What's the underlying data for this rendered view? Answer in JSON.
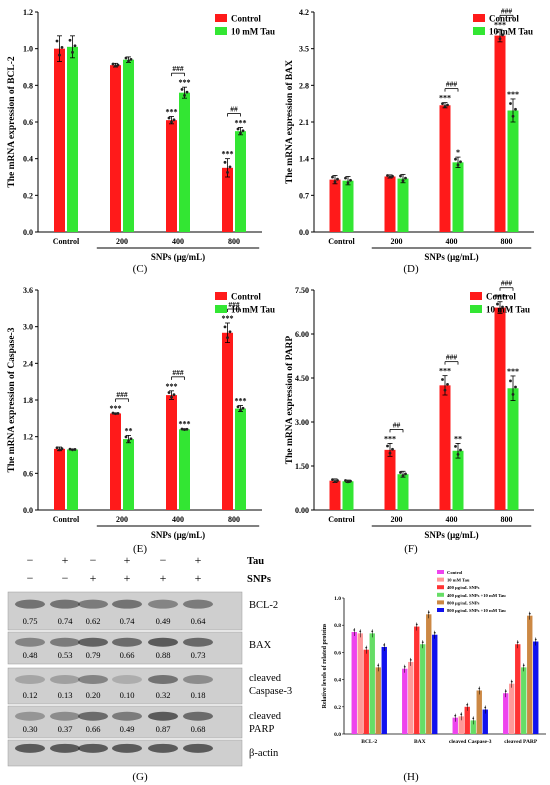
{
  "colors": {
    "control": "#ff1a1a",
    "tau": "#33e633",
    "axis": "#000000",
    "blot_bg": "#c8c8c8",
    "h_series": [
      "#ee44ee",
      "#ff9999",
      "#ff3333",
      "#66dd66",
      "#cc8844",
      "#1111ee"
    ]
  },
  "chart_data": [
    {
      "panel_label": "(C)",
      "type": "bar",
      "ylabel": "The mRNA expression of BCL-2",
      "xlabel": "SNPs (μg/mL)",
      "categories": [
        "Control",
        "200",
        "400",
        "800"
      ],
      "ylim": [
        0,
        1.2
      ],
      "yticks": [
        "0.0",
        "0.2",
        "0.4",
        "0.6",
        "0.8",
        "1.0",
        "1.2"
      ],
      "series": [
        {
          "name": "Control",
          "values": [
            1.0,
            0.91,
            0.61,
            0.35
          ],
          "errors": [
            0.07,
            0.01,
            0.02,
            0.05
          ],
          "sig": [
            "",
            "",
            "***",
            "***"
          ]
        },
        {
          "name": "10 mM Tau",
          "values": [
            1.01,
            0.94,
            0.76,
            0.55
          ],
          "errors": [
            0.06,
            0.015,
            0.03,
            0.02
          ],
          "sig": [
            "",
            "",
            "***",
            "***"
          ]
        }
      ],
      "hash": [
        "",
        "",
        "###",
        "##"
      ]
    },
    {
      "panel_label": "(D)",
      "type": "bar",
      "ylabel": "The mRNA expression of BAX",
      "xlabel": "SNPs (μg/mL)",
      "categories": [
        "Control",
        "200",
        "400",
        "800"
      ],
      "ylim": [
        0,
        4.2
      ],
      "yticks": [
        "0.0",
        "0.7",
        "1.4",
        "2.1",
        "2.8",
        "3.5",
        "4.2"
      ],
      "series": [
        {
          "name": "Control",
          "values": [
            1.0,
            1.06,
            2.42,
            3.75
          ],
          "errors": [
            0.08,
            0.03,
            0.05,
            0.12
          ],
          "sig": [
            "",
            "",
            "***",
            "***"
          ]
        },
        {
          "name": "10 mM Tau",
          "values": [
            0.98,
            1.02,
            1.33,
            2.32
          ],
          "errors": [
            0.08,
            0.08,
            0.1,
            0.22
          ],
          "sig": [
            "",
            "",
            "*",
            "***"
          ]
        }
      ],
      "hash": [
        "",
        "",
        "###",
        "###"
      ]
    },
    {
      "panel_label": "(E)",
      "type": "bar",
      "ylabel": "The mRNA expression of Caspase-3",
      "xlabel": "SNPs (μg/mL)",
      "categories": [
        "Control",
        "200",
        "400",
        "800"
      ],
      "ylim": [
        0,
        3.6
      ],
      "yticks": [
        "0.0",
        "0.6",
        "1.2",
        "1.8",
        "2.4",
        "3.0",
        "3.6"
      ],
      "series": [
        {
          "name": "Control",
          "values": [
            1.0,
            1.58,
            1.88,
            2.9
          ],
          "errors": [
            0.03,
            0.01,
            0.07,
            0.16
          ],
          "sig": [
            "",
            "***",
            "***",
            "***"
          ]
        },
        {
          "name": "10 mM Tau",
          "values": [
            0.99,
            1.16,
            1.32,
            1.66
          ],
          "errors": [
            0.01,
            0.06,
            0.01,
            0.05
          ],
          "sig": [
            "",
            "**",
            "***",
            "***"
          ]
        }
      ],
      "hash": [
        "",
        "###",
        "###",
        "###"
      ]
    },
    {
      "panel_label": "(F)",
      "type": "bar",
      "ylabel": "The mRNA expression of PARP",
      "xlabel": "SNPs (μg/mL)",
      "categories": [
        "Control",
        "200",
        "400",
        "800"
      ],
      "ylim": [
        0,
        7.5
      ],
      "yticks": [
        "0.00",
        "1.50",
        "3.00",
        "4.50",
        "6.00",
        "7.50"
      ],
      "series": [
        {
          "name": "Control",
          "values": [
            1.0,
            2.05,
            4.25,
            6.9
          ],
          "errors": [
            0.06,
            0.22,
            0.33,
            0.2
          ],
          "sig": [
            "",
            "***",
            "***",
            "***"
          ]
        },
        {
          "name": "10 mM Tau",
          "values": [
            0.98,
            1.22,
            2.02,
            4.15
          ],
          "errors": [
            0.04,
            0.1,
            0.25,
            0.42
          ],
          "sig": [
            "",
            "",
            "**",
            "***"
          ]
        }
      ],
      "hash": [
        "",
        "##",
        "###",
        "###"
      ]
    },
    {
      "panel_label": "(H)",
      "type": "bar",
      "ylabel": "Relative levels of related proteins",
      "categories": [
        "BCL-2",
        "BAX",
        "cleaved Caspase-3",
        "cleaved PARP"
      ],
      "ylim": [
        0,
        1.0
      ],
      "yticks": [
        "0.0",
        "0.2",
        "0.4",
        "0.6",
        "0.8",
        "1.0"
      ],
      "series": [
        {
          "name": "Control",
          "values": [
            0.75,
            0.48,
            0.12,
            0.3
          ]
        },
        {
          "name": "10 mM Tau",
          "values": [
            0.74,
            0.53,
            0.13,
            0.37
          ]
        },
        {
          "name": "400 μg/mL SNPs",
          "values": [
            0.62,
            0.79,
            0.2,
            0.66
          ]
        },
        {
          "name": "400 μg/mL SNPs +10 mM Tau",
          "values": [
            0.74,
            0.66,
            0.1,
            0.49
          ]
        },
        {
          "name": "800 μg/mL SNPs",
          "values": [
            0.49,
            0.88,
            0.32,
            0.87
          ]
        },
        {
          "name": "800 μg/mL SNPs +10 mM Tau",
          "values": [
            0.64,
            0.73,
            0.18,
            0.68
          ]
        }
      ]
    }
  ],
  "blot": {
    "panel_label": "(G)",
    "header_rows": [
      {
        "label": "Tau",
        "marks": [
          "−",
          "+",
          "−",
          "+",
          "−",
          "+"
        ]
      },
      {
        "label": "SNPs",
        "marks": [
          "−",
          "−",
          "+",
          "+",
          "+",
          "+"
        ]
      }
    ],
    "proteins": [
      {
        "label": "BCL-2",
        "values": [
          "0.75",
          "0.74",
          "0.62",
          "0.74",
          "0.49",
          "0.64"
        ]
      },
      {
        "label": "BAX",
        "values": [
          "0.48",
          "0.53",
          "0.79",
          "0.66",
          "0.88",
          "0.73"
        ]
      },
      {
        "label": "cleaved Caspase-3",
        "values": [
          "0.12",
          "0.13",
          "0.20",
          "0.10",
          "0.32",
          "0.18"
        ]
      },
      {
        "label": "cleaved PARP",
        "values": [
          "0.30",
          "0.37",
          "0.66",
          "0.49",
          "0.87",
          "0.68"
        ]
      },
      {
        "label": "β-actin",
        "values": []
      }
    ]
  }
}
